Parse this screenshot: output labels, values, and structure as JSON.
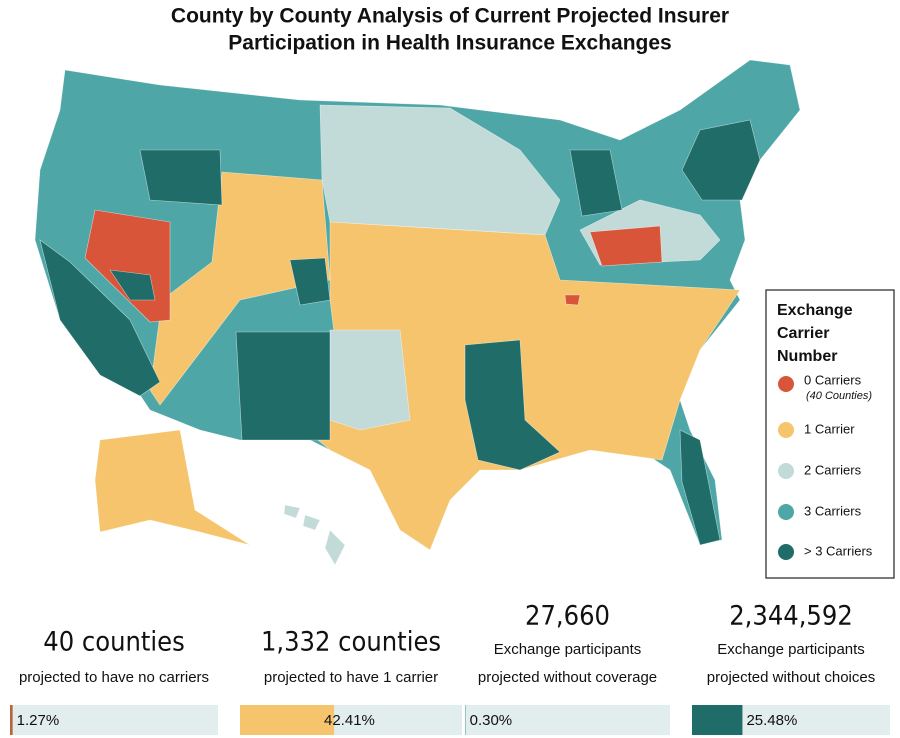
{
  "header": {
    "title": [
      "County by County Analysis of Current Projected Insurer",
      "Participation in Health Insurance Exchanges"
    ]
  },
  "legend": {
    "title": [
      "Exchange",
      "Carrier",
      "Number"
    ],
    "items": [
      {
        "label": "0 Carriers",
        "note": "(40 Counties)",
        "color": "#d9553a"
      },
      {
        "label": "1 Carrier",
        "color": "#f6c46c"
      },
      {
        "label": "2 Carriers",
        "color": "#c2dbd8"
      },
      {
        "label": "3 Carriers",
        "color": "#4ea7a6"
      },
      {
        "label": "> 3 Carriers",
        "color": "#1f6c68"
      }
    ]
  },
  "stats": [
    {
      "headline": "40 counties",
      "lines": [
        "projected to have no carriers"
      ],
      "share": {
        "value": 1.27,
        "label": "1.27%"
      },
      "color": "#b8653a"
    },
    {
      "headline": "1,332 counties",
      "lines": [
        "projected to have 1 carrier"
      ],
      "share": {
        "value": 42.41,
        "label": "42.41%"
      },
      "color": "#f6c46c"
    },
    {
      "headline": "27,660",
      "lines": [
        "Exchange participants",
        "projected without coverage"
      ],
      "share": {
        "value": 0.3,
        "label": "0.30%"
      },
      "color": "#7fbcb8"
    },
    {
      "headline": "2,344,592",
      "lines": [
        "Exchange participants",
        "projected without choices"
      ],
      "share": {
        "value": 25.48,
        "label": "25.48%"
      },
      "color": "#1f6c68"
    }
  ]
}
